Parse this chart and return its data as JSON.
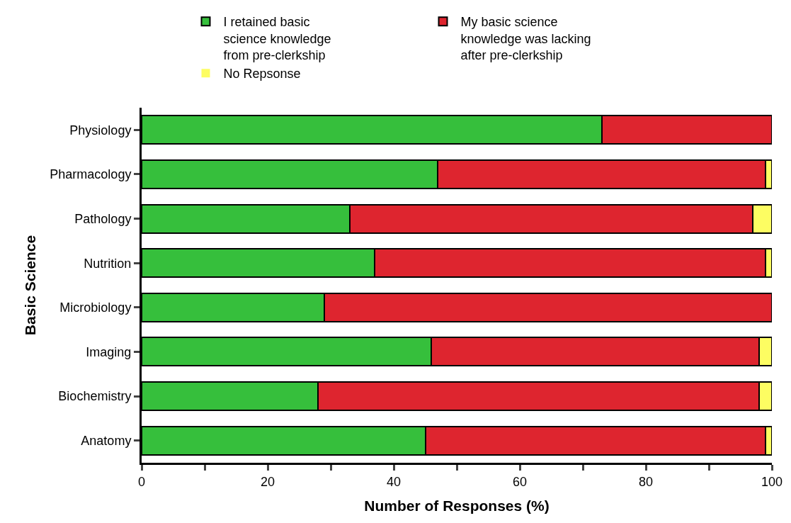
{
  "chart_data": {
    "type": "bar",
    "orientation": "horizontal",
    "stacked": true,
    "xlabel": "Number of Responses (%)",
    "ylabel": "Basic Science",
    "categories": [
      "Physiology",
      "Pharmacology",
      "Pathology",
      "Nutrition",
      "Microbiology",
      "Imaging",
      "Biochemistry",
      "Anatomy"
    ],
    "series": [
      {
        "name": "I retained basic science knowledge from pre-clerkship",
        "color": "#36bf3c",
        "values": [
          73,
          47,
          33,
          37,
          29,
          46,
          28,
          45
        ]
      },
      {
        "name": "My basic science knowledge was lacking after pre-clerkship",
        "color": "#de252f",
        "values": [
          27,
          52,
          64,
          62,
          71,
          52,
          70,
          54
        ]
      },
      {
        "name": "No Repsonse",
        "color": "#fdfd62",
        "values": [
          0,
          1,
          3,
          1,
          0,
          2,
          2,
          1
        ]
      }
    ],
    "xlim": [
      0,
      100
    ],
    "xticks": [
      0,
      {
        "value": 10,
        "label": null
      },
      20,
      {
        "value": 30,
        "label": null
      },
      40,
      {
        "value": 50,
        "label": null
      },
      60,
      {
        "value": 70,
        "label": null
      },
      80,
      {
        "value": 90,
        "label": null
      },
      100
    ],
    "grid": false,
    "legend": "top"
  }
}
